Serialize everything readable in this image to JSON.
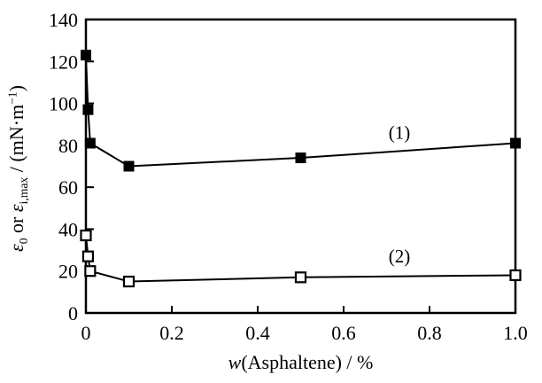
{
  "chart_data": {
    "type": "line",
    "title": "",
    "xlabel": "w(Asphaltene) / %",
    "ylabel": "e0 or e_i,max / (mN*m^-1)",
    "xlabel_parts": [
      {
        "t": "w",
        "style": "italic"
      },
      {
        "t": "(Asphaltene) / %",
        "style": "normal"
      }
    ],
    "ylabel_parts": [
      {
        "t": "ε",
        "style": "italic"
      },
      {
        "t": "0",
        "style": "sub"
      },
      {
        "t": " or ",
        "style": "normal"
      },
      {
        "t": "ε",
        "style": "italic"
      },
      {
        "t": "i,max",
        "style": "sub"
      },
      {
        "t": " / (mN·m",
        "style": "normal"
      },
      {
        "t": "−1",
        "style": "sup"
      },
      {
        "t": ")",
        "style": "normal"
      }
    ],
    "xlim": [
      0,
      1.0
    ],
    "ylim": [
      0,
      140
    ],
    "x_ticks": [
      0,
      0.2,
      0.4,
      0.6,
      0.8,
      1.0
    ],
    "x_tick_labels": [
      "0",
      "0.2",
      "0.4",
      "0.6",
      "0.8",
      "1.0"
    ],
    "y_ticks": [
      0,
      20,
      40,
      60,
      80,
      100,
      120,
      140
    ],
    "y_tick_labels": [
      "0",
      "20",
      "40",
      "60",
      "80",
      "100",
      "120",
      "140"
    ],
    "grid": false,
    "legend_position": "inline-annotations",
    "x": [
      0,
      0.005,
      0.01,
      0.1,
      0.5,
      1.0
    ],
    "series": [
      {
        "name": "(1)",
        "marker": "filled-square",
        "color": "#000000",
        "values": [
          123,
          97,
          81,
          70,
          74,
          81
        ]
      },
      {
        "name": "(2)",
        "marker": "open-square",
        "color": "#000000",
        "values": [
          37,
          27,
          20,
          15,
          17,
          18
        ]
      }
    ],
    "annotations": [
      {
        "text": "(1)",
        "x": 0.73,
        "y": 86
      },
      {
        "text": "(2)",
        "x": 0.73,
        "y": 27
      }
    ],
    "colors": {
      "line": "#000000",
      "background": "#ffffff",
      "open_marker_fill": "#ffffff"
    }
  }
}
